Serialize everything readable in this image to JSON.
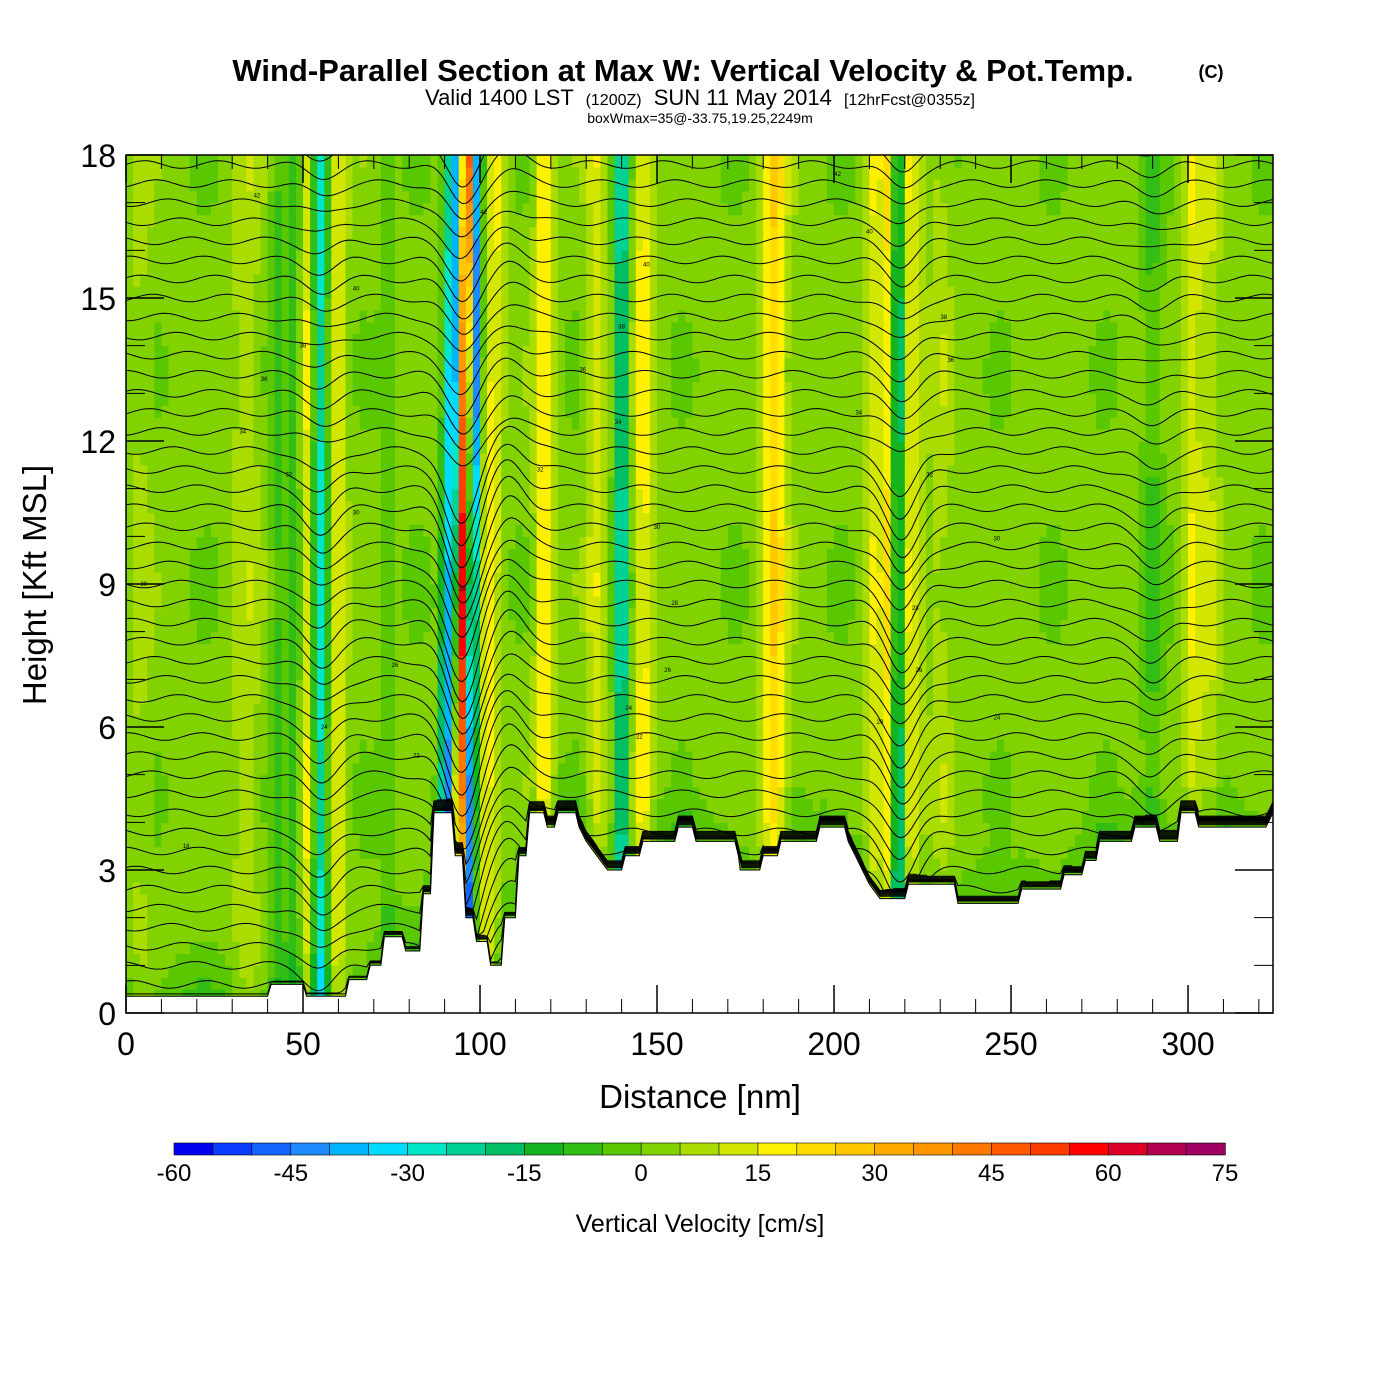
{
  "title": {
    "main": "Wind-Parallel Section at Max W: Vertical Velocity & Pot.Temp.",
    "copyright": "(C)",
    "valid_prefix": "Valid 1400 LST",
    "valid_utc": "(1200Z)",
    "valid_date": "SUN 11 May 2014",
    "forecast": "[12hrFcst@0355z]",
    "box_info": "boxWmax=35@-33.75,19.25,2249m"
  },
  "chart_data": {
    "type": "heatmap",
    "xlabel": "Distance [nm]",
    "ylabel": "Height [Kft MSL]",
    "xlim": [
      0,
      324
    ],
    "ylim": [
      0,
      18
    ],
    "x_ticks": [
      "0",
      "50",
      "100",
      "150",
      "200",
      "250",
      "300"
    ],
    "y_ticks": [
      "0",
      "3",
      "6",
      "9",
      "12",
      "15",
      "18"
    ],
    "colorbar": {
      "label": "Vertical Velocity [cm/s]",
      "range": [
        -60,
        75
      ],
      "step": 5,
      "tick_labels": [
        "-60",
        "-45",
        "-30",
        "-15",
        "0",
        "15",
        "30",
        "45",
        "60",
        "75"
      ],
      "colors": [
        "#0000ee",
        "#0a3cff",
        "#1464ff",
        "#1e8cff",
        "#00b4ff",
        "#00dcff",
        "#00e6c8",
        "#00d296",
        "#00be64",
        "#14b41e",
        "#32be14",
        "#5ac800",
        "#82d200",
        "#aadc00",
        "#d2e600",
        "#fff000",
        "#ffdc00",
        "#ffc800",
        "#ffaa00",
        "#ff9600",
        "#ff7800",
        "#ff5a00",
        "#ff3c00",
        "#ff0000",
        "#dc0028",
        "#b40050",
        "#a00064"
      ]
    },
    "terrain_kft": [
      [
        0,
        0.35
      ],
      [
        40,
        0.35
      ],
      [
        41,
        0.6
      ],
      [
        50,
        0.6
      ],
      [
        51,
        0.35
      ],
      [
        62,
        0.35
      ],
      [
        63,
        0.7
      ],
      [
        68,
        0.7
      ],
      [
        69,
        1.0
      ],
      [
        72,
        1.0
      ],
      [
        73,
        1.6
      ],
      [
        78,
        1.6
      ],
      [
        79,
        1.3
      ],
      [
        83,
        1.3
      ],
      [
        84,
        2.5
      ],
      [
        86,
        2.5
      ],
      [
        87,
        4.2
      ],
      [
        92,
        4.2
      ],
      [
        93,
        3.3
      ],
      [
        95,
        3.3
      ],
      [
        96,
        2.0
      ],
      [
        98,
        2.0
      ],
      [
        99,
        1.5
      ],
      [
        102,
        1.5
      ],
      [
        103,
        1.0
      ],
      [
        106,
        1.0
      ],
      [
        107,
        2.0
      ],
      [
        110,
        2.0
      ],
      [
        111,
        3.3
      ],
      [
        113,
        3.3
      ],
      [
        114,
        4.2
      ],
      [
        118,
        4.2
      ],
      [
        119,
        3.9
      ],
      [
        121,
        3.9
      ],
      [
        122,
        4.2
      ],
      [
        127,
        4.2
      ],
      [
        128,
        3.9
      ],
      [
        130,
        3.6
      ],
      [
        133,
        3.3
      ],
      [
        136,
        3.0
      ],
      [
        140,
        3.0
      ],
      [
        141,
        3.3
      ],
      [
        145,
        3.3
      ],
      [
        146,
        3.6
      ],
      [
        155,
        3.6
      ],
      [
        156,
        3.9
      ],
      [
        160,
        3.9
      ],
      [
        161,
        3.6
      ],
      [
        172,
        3.6
      ],
      [
        173,
        3.3
      ],
      [
        173.5,
        3.0
      ],
      [
        179,
        3.0
      ],
      [
        180,
        3.3
      ],
      [
        184,
        3.3
      ],
      [
        185,
        3.6
      ],
      [
        195,
        3.6
      ],
      [
        196,
        3.9
      ],
      [
        203,
        3.9
      ],
      [
        204,
        3.6
      ],
      [
        206,
        3.3
      ],
      [
        208,
        3.0
      ],
      [
        210,
        2.7
      ],
      [
        213,
        2.4
      ],
      [
        220,
        2.4
      ],
      [
        221,
        2.7
      ],
      [
        234,
        2.7
      ],
      [
        235,
        2.3
      ],
      [
        252,
        2.3
      ],
      [
        253,
        2.6
      ],
      [
        264,
        2.6
      ],
      [
        265,
        2.9
      ],
      [
        270,
        2.9
      ],
      [
        271,
        3.2
      ],
      [
        274,
        3.2
      ],
      [
        275,
        3.6
      ],
      [
        284,
        3.6
      ],
      [
        285,
        3.9
      ],
      [
        291,
        3.9
      ],
      [
        292,
        3.6
      ],
      [
        297,
        3.6
      ],
      [
        298,
        4.2
      ],
      [
        302,
        4.2
      ],
      [
        303,
        3.9
      ],
      [
        322,
        3.9
      ],
      [
        324,
        4.2
      ]
    ],
    "w_field": {
      "grid": {
        "nx": 162,
        "ny": 72
      },
      "background_cm_s": 2,
      "surface_layer_cm_s": -6,
      "features": [
        {
          "x": 4,
          "width": 3,
          "amp": 4
        },
        {
          "x": 34,
          "width": 4,
          "amp": 6
        },
        {
          "x": 43,
          "width": 2.5,
          "amp": -8
        },
        {
          "x": 48,
          "width": 2,
          "amp": -12
        },
        {
          "x": 51,
          "width": 2.5,
          "amp": 15
        },
        {
          "x": 55,
          "width": 2.5,
          "amp": -32
        },
        {
          "x": 59,
          "width": 3,
          "amp": 14
        },
        {
          "x": 74,
          "width": 2,
          "amp": -5
        },
        {
          "x": 90,
          "width": 1.5,
          "amp": -20
        },
        {
          "x": 92,
          "width": 1.6,
          "amp": -38
        },
        {
          "x": 95,
          "width": 1.5,
          "amp": 55
        },
        {
          "x": 98,
          "width": 1.5,
          "amp": -45
        },
        {
          "x": 103,
          "width": 2.5,
          "amp": 15
        },
        {
          "x": 118,
          "width": 2.5,
          "amp": 18
        },
        {
          "x": 133,
          "width": 2.5,
          "amp": 12
        },
        {
          "x": 140,
          "width": 2,
          "amp": -28
        },
        {
          "x": 146,
          "width": 2.5,
          "amp": 16
        },
        {
          "x": 183,
          "width": 3.5,
          "amp": 22
        },
        {
          "x": 211,
          "width": 2,
          "amp": 12
        },
        {
          "x": 215,
          "width": 2,
          "amp": 18
        },
        {
          "x": 218,
          "width": 1.5,
          "amp": -30
        },
        {
          "x": 222,
          "width": 2.5,
          "amp": 14
        },
        {
          "x": 230,
          "width": 3,
          "amp": 6
        },
        {
          "x": 290,
          "width": 3,
          "amp": -8
        },
        {
          "x": 301,
          "width": 2.5,
          "amp": 12
        },
        {
          "x": 306,
          "width": 3,
          "amp": 8
        }
      ]
    },
    "theta_contours": {
      "count": 46,
      "base_height_kft": 0.2,
      "spacing_kft": 0.4,
      "disturbances": [
        {
          "x": 55,
          "dip_kft": 0.5
        },
        {
          "x": 95,
          "dip_kft": 1.6
        },
        {
          "x": 108,
          "dip_kft": -0.6
        },
        {
          "x": 219,
          "dip_kft": 1.0
        },
        {
          "x": 290,
          "dip_kft": 0.4
        }
      ]
    },
    "contour_labels": [
      {
        "text": "42",
        "x": 37,
        "y": 17.15
      },
      {
        "text": "42",
        "x": 101,
        "y": 16.8
      },
      {
        "text": "40",
        "x": 65,
        "y": 15.2
      },
      {
        "text": "40",
        "x": 147,
        "y": 15.7
      },
      {
        "text": "40",
        "x": 210,
        "y": 16.4
      },
      {
        "text": "42",
        "x": 201,
        "y": 17.6
      },
      {
        "text": "38",
        "x": 50,
        "y": 14.0
      },
      {
        "text": "38",
        "x": 140,
        "y": 14.4
      },
      {
        "text": "38",
        "x": 231,
        "y": 14.6
      },
      {
        "text": "36",
        "x": 39,
        "y": 13.3
      },
      {
        "text": "36",
        "x": 129,
        "y": 13.5
      },
      {
        "text": "36",
        "x": 233,
        "y": 13.7
      },
      {
        "text": "34",
        "x": 33,
        "y": 12.2
      },
      {
        "text": "34",
        "x": 139,
        "y": 12.4
      },
      {
        "text": "34",
        "x": 207,
        "y": 12.6
      },
      {
        "text": "32",
        "x": 46,
        "y": 11.3
      },
      {
        "text": "32",
        "x": 117,
        "y": 11.4
      },
      {
        "text": "32",
        "x": 227,
        "y": 11.3
      },
      {
        "text": "30",
        "x": 65,
        "y": 10.5
      },
      {
        "text": "30",
        "x": 150,
        "y": 10.2
      },
      {
        "text": "30",
        "x": 246,
        "y": 9.95
      },
      {
        "text": "30",
        "x": 5,
        "y": 9.0
      },
      {
        "text": "28",
        "x": 95,
        "y": 8.9
      },
      {
        "text": "28",
        "x": 155,
        "y": 8.6
      },
      {
        "text": "28",
        "x": 223,
        "y": 8.5
      },
      {
        "text": "26",
        "x": 76,
        "y": 7.3
      },
      {
        "text": "26",
        "x": 153,
        "y": 7.2
      },
      {
        "text": "26",
        "x": 224,
        "y": 7.2
      },
      {
        "text": "24",
        "x": 142,
        "y": 6.4
      },
      {
        "text": "24",
        "x": 246,
        "y": 6.2
      },
      {
        "text": "22",
        "x": 145,
        "y": 5.8
      },
      {
        "text": "24",
        "x": 56,
        "y": 6.0
      },
      {
        "text": "22",
        "x": 82,
        "y": 5.4
      },
      {
        "text": "20",
        "x": 213,
        "y": 6.1
      },
      {
        "text": "18",
        "x": 17,
        "y": 3.5
      }
    ]
  }
}
